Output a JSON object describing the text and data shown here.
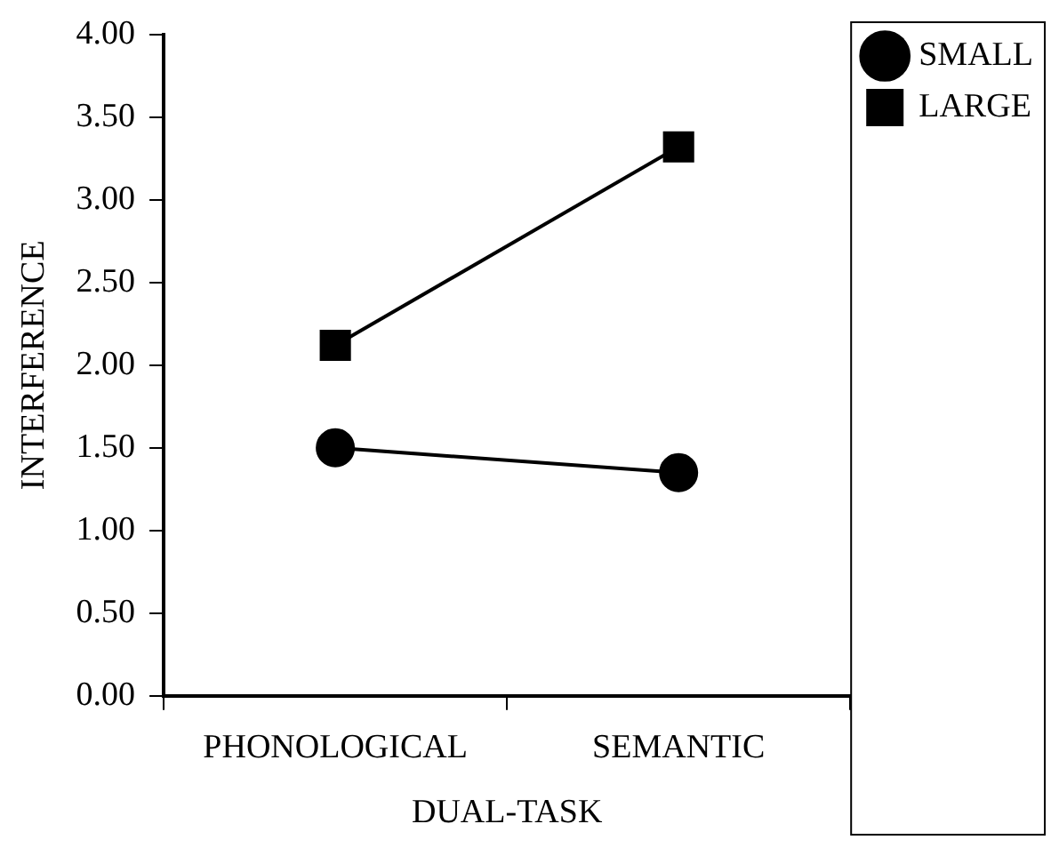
{
  "chart_data": {
    "type": "line",
    "xlabel": "DUAL-TASK",
    "ylabel": "INTERFERENCE",
    "categories": [
      "PHONOLOGICAL",
      "SEMANTIC"
    ],
    "series": [
      {
        "name": "SMALL",
        "color": "#000000",
        "marker": "circle",
        "values": [
          1.5,
          1.35
        ]
      },
      {
        "name": "LARGE",
        "color": "#000000",
        "marker": "square",
        "values": [
          2.12,
          3.32
        ]
      }
    ],
    "ylim": [
      0,
      4
    ],
    "yticks": [
      {
        "value": 0,
        "label": "0.00"
      },
      {
        "value": 0.5,
        "label": "0.50"
      },
      {
        "value": 1,
        "label": "1.00"
      },
      {
        "value": 1.5,
        "label": "1.50"
      },
      {
        "value": 2,
        "label": "2.00"
      },
      {
        "value": 2.5,
        "label": "2.50"
      },
      {
        "value": 3,
        "label": "3.00"
      },
      {
        "value": 3.5,
        "label": "3.50"
      },
      {
        "value": 4,
        "label": "4.00"
      }
    ],
    "grid": false,
    "legend": "top right",
    "line_style": "solid"
  }
}
